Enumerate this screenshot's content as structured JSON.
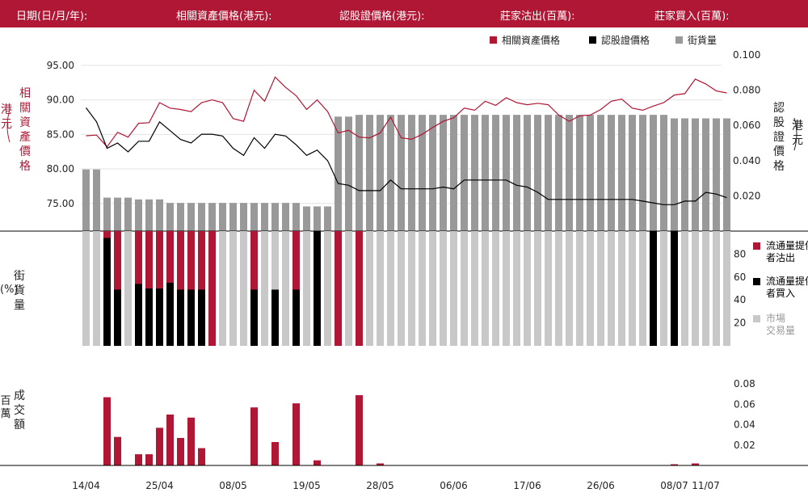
{
  "header": {
    "date_label": "日期(日/月/年):",
    "underlying_label": "相關資產價格(港元):",
    "warrant_label": "認股證價格(港元):",
    "mm_sell_label": "莊家沽出(百萬):",
    "mm_buy_label": "莊家買入(百萬):"
  },
  "colors": {
    "brand": "#b01735",
    "black": "#000000",
    "dark_gray": "#999999",
    "light_gray": "#c8c8c8"
  },
  "chart_data": [
    {
      "type": "line",
      "legend": [
        "相關資產價格",
        "認股證價格",
        "街貨量"
      ],
      "x_tick_labels": [
        "14/04",
        "25/04",
        "08/05",
        "19/05",
        "28/05",
        "06/06",
        "17/06",
        "26/06",
        "08/07",
        "11/07"
      ],
      "x_tick_index": [
        0,
        7,
        14,
        21,
        28,
        35,
        42,
        49,
        56,
        59
      ],
      "y_left_label": "相關資產價格（港元）",
      "y_left_ticks": [
        "95.00",
        "90.00",
        "85.00",
        "80.00",
        "75.00"
      ],
      "y_left_range": [
        71,
        96.5
      ],
      "y_right_label": "認股證價格（港元）",
      "y_right_ticks": [
        "0.100",
        "0.080",
        "0.060",
        "0.040",
        "0.020"
      ],
      "y_right_range": [
        0.0,
        0.1
      ],
      "series": [
        {
          "name": "相關資產價格",
          "color": "#b01735",
          "values": [
            84.8,
            84.9,
            83.2,
            85.3,
            84.6,
            86.6,
            86.7,
            89.6,
            88.8,
            88.6,
            88.3,
            89.6,
            90.0,
            89.6,
            87.3,
            86.9,
            91.4,
            89.8,
            93.3,
            91.8,
            90.6,
            88.6,
            90.0,
            88.3,
            85.2,
            85.6,
            84.6,
            84.5,
            85.2,
            87.5,
            84.5,
            84.3,
            85.0,
            86.0,
            86.9,
            87.4,
            88.8,
            88.5,
            89.8,
            89.2,
            90.3,
            89.6,
            89.3,
            89.5,
            89.3,
            87.8,
            86.9,
            87.7,
            87.8,
            88.6,
            89.8,
            90.1,
            88.8,
            88.5,
            89.1,
            89.6,
            90.7,
            90.9,
            93.0,
            92.3,
            91.3,
            91.0
          ]
        },
        {
          "name": "認股證價格",
          "color": "#000000",
          "values": [
            0.07,
            0.062,
            0.047,
            0.05,
            0.045,
            0.051,
            0.051,
            0.062,
            0.057,
            0.052,
            0.05,
            0.055,
            0.055,
            0.054,
            0.047,
            0.043,
            0.053,
            0.047,
            0.055,
            0.054,
            0.049,
            0.043,
            0.046,
            0.04,
            0.027,
            0.026,
            0.023,
            0.023,
            0.023,
            0.029,
            0.024,
            0.024,
            0.024,
            0.024,
            0.025,
            0.024,
            0.029,
            0.029,
            0.029,
            0.029,
            0.029,
            0.026,
            0.025,
            0.022,
            0.018,
            0.018,
            0.018,
            0.018,
            0.018,
            0.018,
            0.018,
            0.018,
            0.018,
            0.017,
            0.016,
            0.015,
            0.015,
            0.017,
            0.017,
            0.022,
            0.021,
            0.019
          ]
        }
      ]
    },
    {
      "type": "bar",
      "title": "街貨量",
      "color": "#999999",
      "values": [
        35,
        35,
        19,
        19,
        19,
        18,
        18,
        18,
        16,
        16,
        16,
        16,
        16,
        16,
        16,
        16,
        16,
        16,
        16,
        16,
        16,
        14,
        14,
        14,
        65,
        65,
        66,
        66,
        66,
        66,
        66,
        66,
        66,
        66,
        66,
        66,
        66,
        66,
        66,
        66,
        66,
        66,
        66,
        66,
        66,
        66,
        66,
        66,
        66,
        66,
        66,
        66,
        66,
        66,
        66,
        66,
        64,
        64,
        64,
        64,
        64,
        64
      ]
    },
    {
      "type": "bar",
      "ylabel": "街貨量（%）",
      "legend": [
        "流通量提供者沽出",
        "流通量提供者買入",
        "市場交易量"
      ],
      "y_ticks": [
        "80",
        "60",
        "40",
        "20"
      ],
      "ylim": [
        0,
        100
      ],
      "sell": [
        0,
        0,
        100,
        100,
        0,
        100,
        100,
        100,
        100,
        100,
        100,
        100,
        100,
        0,
        0,
        0,
        100,
        0,
        0,
        0,
        100,
        0,
        0,
        0,
        100,
        0,
        100,
        0,
        0,
        0,
        0,
        0,
        0,
        0,
        0,
        0,
        0,
        0,
        0,
        0,
        0,
        0,
        0,
        0,
        0,
        0,
        0,
        0,
        0,
        0,
        0,
        0,
        0,
        0,
        0,
        0,
        0,
        0,
        0,
        0,
        0,
        0
      ],
      "buy": [
        0,
        0,
        94,
        49,
        0,
        54,
        50,
        50,
        55,
        49,
        49,
        49,
        0,
        0,
        0,
        0,
        49,
        0,
        49,
        0,
        49,
        0,
        100,
        0,
        0,
        0,
        0,
        0,
        0,
        0,
        0,
        0,
        0,
        0,
        0,
        0,
        0,
        0,
        0,
        0,
        0,
        0,
        0,
        0,
        0,
        0,
        0,
        0,
        0,
        0,
        0,
        0,
        0,
        0,
        100,
        0,
        100,
        0,
        0,
        0,
        0,
        0
      ]
    },
    {
      "type": "bar",
      "ylabel": "成交額（百萬）",
      "y_ticks": [
        "0.08",
        "0.06",
        "0.04",
        "0.02"
      ],
      "ylim": [
        0,
        0.1
      ],
      "color": "#b01735",
      "values": [
        0,
        0,
        0.067,
        0.028,
        0,
        0.011,
        0.011,
        0.037,
        0.05,
        0.027,
        0.047,
        0.017,
        0,
        0,
        0,
        0,
        0.057,
        0,
        0.023,
        0,
        0.061,
        0,
        0.005,
        0,
        0,
        0,
        0.069,
        0,
        0.002,
        0,
        0,
        0,
        0,
        0,
        0,
        0,
        0,
        0,
        0,
        0,
        0,
        0,
        0,
        0,
        0,
        0,
        0,
        0,
        0,
        0,
        0,
        0,
        0,
        0,
        0,
        0,
        0.001,
        0,
        0.002,
        0,
        0,
        0
      ]
    }
  ],
  "labels": {
    "left1_main": "相關資產價格",
    "left1_unit": "（港元）",
    "right1_main": "認股證價格",
    "right1_unit": "（港元）",
    "left2_unit": "（%）",
    "left2_main": "街貨量",
    "left3_unit": "（百萬）",
    "left3_main": "成交額"
  }
}
